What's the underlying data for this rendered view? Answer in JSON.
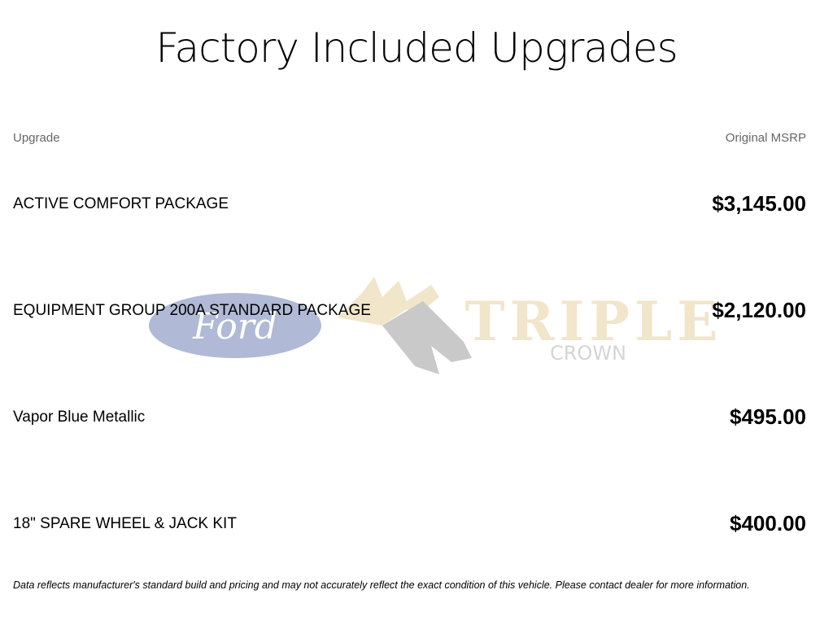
{
  "title": "Factory Included Upgrades",
  "table": {
    "headers": {
      "upgrade": "Upgrade",
      "msrp": "Original MSRP"
    },
    "rows": [
      {
        "name": "ACTIVE COMFORT PACKAGE",
        "price": "$3,145.00"
      },
      {
        "name": "EQUIPMENT GROUP 200A STANDARD PACKAGE",
        "price": "$2,120.00"
      },
      {
        "name": "Vapor Blue Metallic",
        "price": "$495.00"
      },
      {
        "name": "18\" SPARE WHEEL & JACK KIT",
        "price": "$400.00"
      }
    ]
  },
  "watermark": {
    "brand": "Ford",
    "dealer_line1": "TRIPLE",
    "dealer_line2": "CROWN"
  },
  "footer": "Data reflects manufacturer's standard build and pricing and may not accurately reflect the exact condition of this vehicle. Please contact dealer for more information."
}
